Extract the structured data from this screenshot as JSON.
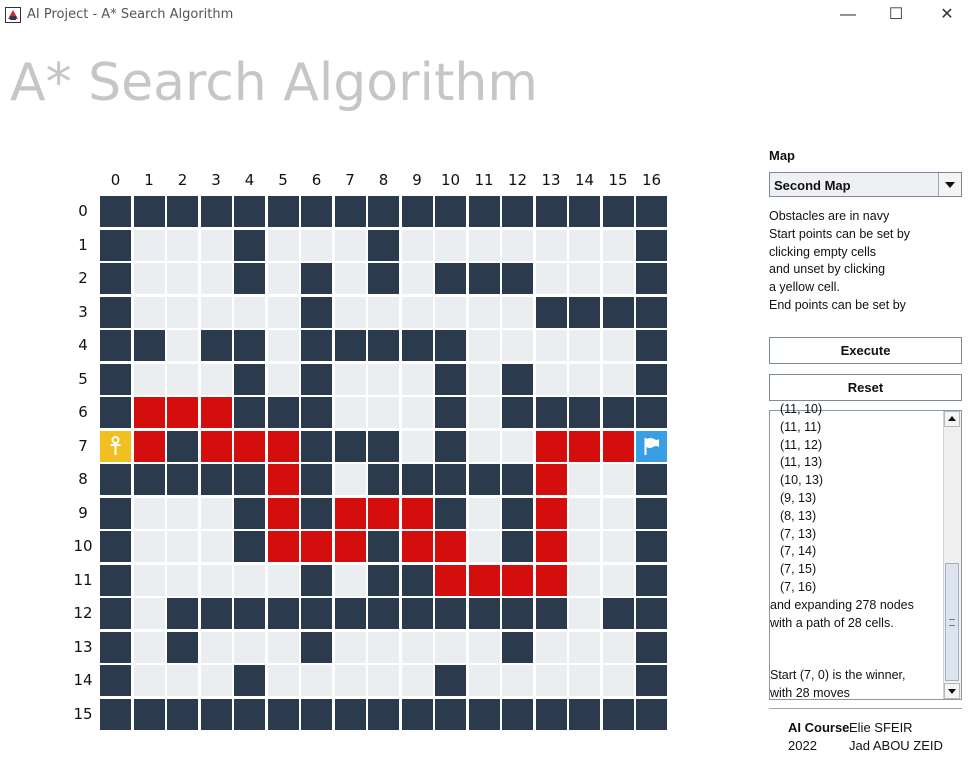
{
  "window": {
    "title": "AI Project - A* Search Algorithm",
    "minimize_glyph": "—",
    "maximize_glyph": "☐",
    "close_glyph": "✕"
  },
  "heading": "A* Search Algorithm",
  "grid": {
    "columns": [
      "0",
      "1",
      "2",
      "3",
      "4",
      "5",
      "6",
      "7",
      "8",
      "9",
      "10",
      "11",
      "12",
      "13",
      "14",
      "15",
      "16"
    ],
    "rows": [
      "0",
      "1",
      "2",
      "3",
      "4",
      "5",
      "6",
      "7",
      "8",
      "9",
      "10",
      "11",
      "12",
      "13",
      "14",
      "15"
    ],
    "legend": {
      "O": "obstacle",
      ".": "empty",
      "R": "path",
      "S": "start",
      "E": "end"
    },
    "cells": [
      "OOOOOOOOOOOOOOOOO",
      "O...O...O.......O",
      "O...O.O.O.OOO...O",
      "O.....O......OOOO",
      "OO.OO.OOOOO.....O",
      "O...O.O...O.O...O",
      "ORRROOO...O.OOOOO",
      "SRORRROOO.O..RRRE",
      "OOOOORO.OOOOOR..O",
      "O...ORORRRO.OR..O",
      "O...ORRRORR.OR..O",
      "O.....O.OORRRR..O",
      "O.OOOOOOOOOOOO.OO",
      "O.O...O.....O...O",
      "O...O.....O.....O",
      "OOOOOOOOOOOOOOOOO"
    ],
    "colors": {
      "obstacle": "#2c3a4d",
      "empty": "#ebeef0",
      "path": "#d40d0d",
      "start": "#f0c020",
      "end": "#3a9ee4"
    },
    "start_icon": "ankh-icon",
    "end_icon": "flag-icon"
  },
  "sidebar": {
    "map_label": "Map",
    "map_selected": "Second Map",
    "info_lines": [
      "Obstacles are in navy",
      "Start points can be set by",
      "clicking empty cells",
      "and unset by clicking",
      "a yellow cell.",
      "End points can be set by"
    ],
    "execute_label": "Execute",
    "reset_label": "Reset",
    "log_coords": [
      "(11, 10)",
      "(11, 11)",
      "(11, 12)",
      "(11, 13)",
      "(10, 13)",
      "(9, 13)",
      "(8, 13)",
      "(7, 13)",
      "(7, 14)",
      "(7, 15)",
      "(7, 16)"
    ],
    "log_summary": [
      "and expanding 278 nodes",
      "with a path of 28 cells."
    ],
    "log_winner": [
      "Start (7, 0) is the winner,",
      "with 28 moves"
    ]
  },
  "footer": {
    "course": "AI Course",
    "year": "2022",
    "author1": "Elie SFEIR",
    "author2": "Jad ABOU ZEID"
  }
}
